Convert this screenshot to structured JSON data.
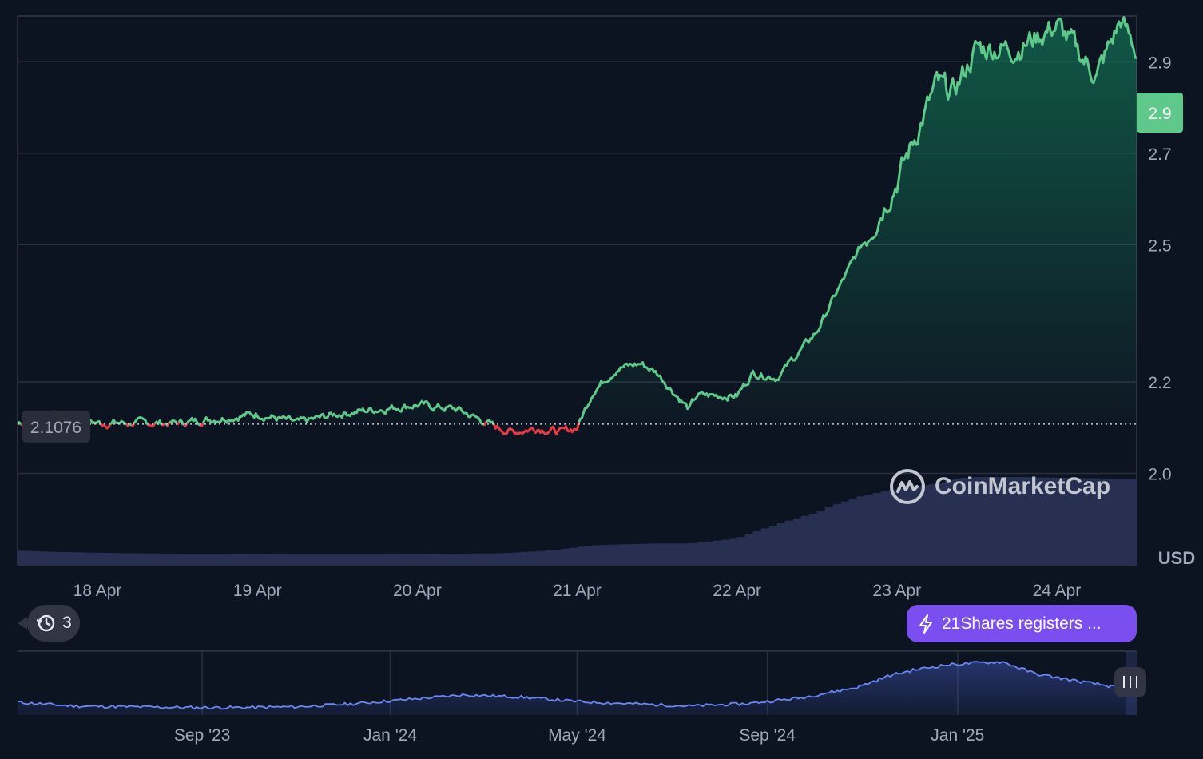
{
  "chart_data": [
    {
      "type": "area",
      "currency_label": "USD",
      "y_ticks": [
        2.0,
        2.2,
        2.5,
        2.7,
        2.9
      ],
      "y_tick_labels": [
        "2.0",
        "2.2",
        "2.5",
        "2.7",
        "2.9"
      ],
      "ylim": [
        1.8,
        3.0
      ],
      "x_ticks": [
        "18 Apr",
        "19 Apr",
        "20 Apr",
        "21 Apr",
        "22 Apr",
        "23 Apr",
        "24 Apr"
      ],
      "x_tick_pos": [
        0.5,
        1.5,
        2.5,
        3.5,
        4.5,
        5.5,
        6.5
      ],
      "xlim": [
        0,
        7
      ],
      "reference_price": 2.1076,
      "reference_label": "2.1076",
      "current_price_label": "2.9",
      "up_color": "#16c784",
      "line_up_color": "#5ec98a",
      "down_color": "#ea3943",
      "grid": true,
      "x": [
        0.0,
        0.25,
        0.5,
        0.75,
        1.0,
        1.25,
        1.5,
        1.75,
        2.0,
        2.25,
        2.5,
        2.75,
        3.0,
        3.1,
        3.25,
        3.4,
        3.5,
        3.6,
        3.75,
        3.9,
        4.0,
        4.2,
        4.25,
        4.5,
        4.6,
        4.75,
        5.0,
        5.1,
        5.25,
        5.5,
        5.75,
        5.85,
        6.0,
        6.25,
        6.5,
        6.75,
        6.9,
        7.0
      ],
      "y": [
        2.11,
        2.13,
        2.11,
        2.11,
        2.11,
        2.12,
        2.13,
        2.11,
        2.13,
        2.14,
        2.15,
        2.14,
        2.1,
        2.09,
        2.1,
        2.09,
        2.1,
        2.18,
        2.23,
        2.24,
        2.22,
        2.14,
        2.17,
        2.17,
        2.22,
        2.21,
        2.31,
        2.38,
        2.48,
        2.64,
        2.85,
        2.83,
        2.93,
        2.93,
        2.98,
        2.87,
        2.99,
        2.92
      ],
      "volume": [
        0.42,
        0.38,
        0.36,
        0.34,
        0.33,
        0.33,
        0.32,
        0.31,
        0.31,
        0.31,
        0.32,
        0.33,
        0.34,
        0.36,
        0.4,
        0.46,
        0.52,
        0.58,
        0.6,
        0.62,
        0.63,
        0.63,
        0.65,
        0.78,
        0.95,
        1.2,
        1.55,
        1.75,
        2.0,
        2.25,
        2.4,
        2.55,
        2.6,
        2.6,
        2.58,
        2.56,
        2.55,
        2.55
      ]
    },
    {
      "type": "line",
      "x_ticks": [
        "Sep '23",
        "Jan '24",
        "May '24",
        "Sep '24",
        "Jan '25"
      ],
      "x_tick_pos": [
        0.165,
        0.333,
        0.5,
        0.67,
        0.84
      ],
      "xlim": [
        0,
        1
      ],
      "x": [
        0.0,
        0.05,
        0.1,
        0.15,
        0.2,
        0.25,
        0.3,
        0.35,
        0.4,
        0.45,
        0.5,
        0.55,
        0.6,
        0.65,
        0.7,
        0.75,
        0.78,
        0.8,
        0.83,
        0.86,
        0.88,
        0.91,
        0.94,
        0.97,
        0.99,
        1.0
      ],
      "y": [
        0.62,
        0.57,
        0.56,
        0.55,
        0.55,
        0.56,
        0.6,
        0.66,
        0.72,
        0.69,
        0.63,
        0.6,
        0.57,
        0.6,
        0.68,
        0.82,
        0.98,
        1.05,
        1.12,
        1.15,
        1.16,
        1.0,
        0.92,
        0.85,
        0.8,
        0.86
      ],
      "ylim": [
        0.45,
        1.25
      ],
      "line_color": "#6b87f5"
    }
  ],
  "history": {
    "count": "3",
    "icon": "history-icon"
  },
  "news": {
    "text": "21Shares registers ...",
    "icon": "lightning-icon"
  },
  "watermark": {
    "text": "CoinMarketCap"
  }
}
